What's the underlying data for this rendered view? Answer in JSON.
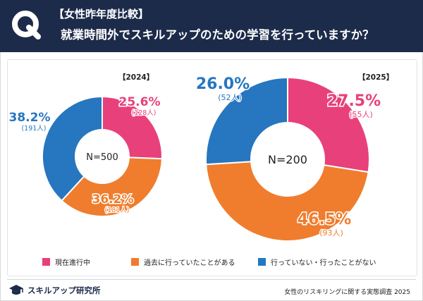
{
  "header": {
    "tag": "【女性昨年度比較】",
    "question": "就業時間外でスキルアップのための学習を行っていますか？",
    "q_letter": "Q"
  },
  "chart_data": [
    {
      "type": "pie",
      "title": "【2024】",
      "center_label": "N=500",
      "categories": [
        "現在進行中",
        "過去に行っていたことがある",
        "行っていない・行ったことがない"
      ],
      "values": [
        25.6,
        36.2,
        38.2
      ],
      "value_labels": [
        "25.6%",
        "36.2%",
        "38.2%"
      ],
      "counts": [
        "(128人)",
        "(181人)",
        "(191人)"
      ]
    },
    {
      "type": "pie",
      "title": "【2025】",
      "center_label": "N=200",
      "categories": [
        "現在進行中",
        "過去に行っていたことがある",
        "行っていない・行ったことがない"
      ],
      "values": [
        27.5,
        46.5,
        26.0
      ],
      "value_labels": [
        "27.5%",
        "46.5%",
        "26.0%"
      ],
      "counts": [
        "(55人)",
        "(93人)",
        "(52人)"
      ]
    }
  ],
  "colors": {
    "current": "#e8407a",
    "past": "#ef7d2d",
    "never": "#2676c0",
    "header_bg": "#1c2b4a"
  },
  "legend": [
    {
      "label": "現在進行中",
      "color": "#e8407a"
    },
    {
      "label": "過去に行っていたことがある",
      "color": "#ef7d2d"
    },
    {
      "label": "行っていない・行ったことがない",
      "color": "#2676c0"
    }
  ],
  "footer": {
    "logo_icon": "graduation-cap-icon",
    "logo_text": "スキルアップ研究所",
    "source": "女性のリスキリングに関する実態調査 2025"
  }
}
